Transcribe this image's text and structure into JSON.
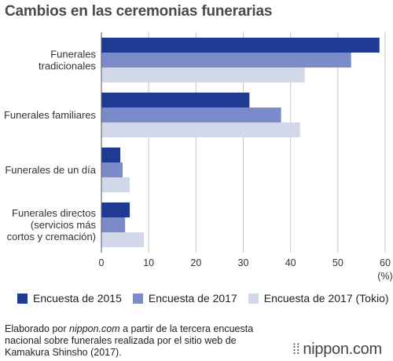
{
  "title": "Cambios en las ceremonias funerarias",
  "chart_data": {
    "type": "bar",
    "orientation": "horizontal",
    "categories": [
      [
        "Funerales",
        "tradicionales"
      ],
      [
        "Funerales familiares"
      ],
      [
        "Funerales de un día"
      ],
      [
        "Funerales directos",
        "(servicios más",
        "cortos y cremación)"
      ]
    ],
    "series": [
      {
        "name": "Encuesta de 2015",
        "color": "#1f3a93",
        "values": [
          58.8,
          31.3,
          4.0,
          6.0
        ]
      },
      {
        "name": "Encuesta de 2017",
        "color": "#7b8ac8",
        "values": [
          52.8,
          38.0,
          4.5,
          5.0
        ]
      },
      {
        "name": "Encuesta de 2017 (Tokio)",
        "color": "#d3d7ea",
        "values": [
          43.0,
          42.0,
          6.0,
          9.0
        ]
      }
    ],
    "xlim": [
      0,
      60
    ],
    "xticks": [
      "0",
      "10",
      "20",
      "30",
      "40",
      "50",
      "60"
    ],
    "unit_label": "(%)",
    "grid": true,
    "legend_position": "bottom"
  },
  "footer": {
    "prefix": "Elaborado por ",
    "source": "nippon.com",
    "suffix": " a partir de la tercera encuesta nacional sobre funerales realizada por el sitio web de Kamakura Shinsho (2017)."
  },
  "logo": {
    "text": "nippon.com",
    "icon": "nippon-dots-icon"
  }
}
